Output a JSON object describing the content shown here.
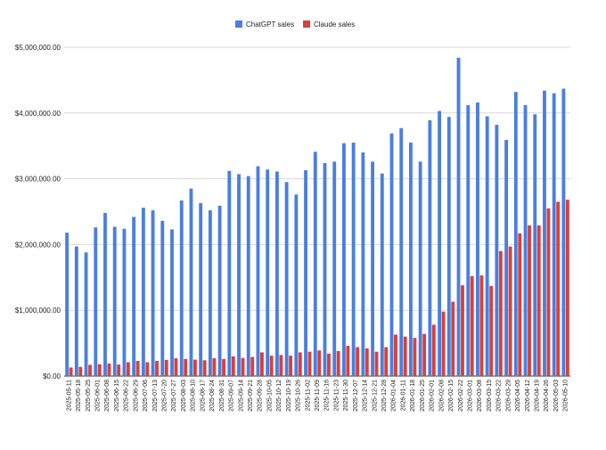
{
  "chart_data": {
    "type": "bar",
    "title": "",
    "xlabel": "",
    "ylabel": "",
    "legend_position": "top-center",
    "grid": true,
    "ylim": [
      0,
      5000000
    ],
    "y_ticks": [
      0,
      1000000,
      2000000,
      3000000,
      4000000,
      5000000
    ],
    "y_tick_labels": [
      "$0.00",
      "$1,000,000.00",
      "$2,000,000.00",
      "$3,000,000.00",
      "$4,000,000.00",
      "$5,000,000.00"
    ],
    "categories": [
      "2025-05-11",
      "2025-05-18",
      "2025-05-25",
      "2025-06-01",
      "2025-06-08",
      "2025-06-15",
      "2025-06-22",
      "2025-06-29",
      "2025-07-06",
      "2025-07-13",
      "2025-07-20",
      "2025-07-27",
      "2025-08-03",
      "2025-08-10",
      "2025-08-17",
      "2025-08-24",
      "2025-08-31",
      "2025-09-07",
      "2025-09-14",
      "2025-09-21",
      "2025-09-28",
      "2025-10-05",
      "2025-10-12",
      "2025-10-19",
      "2025-10-26",
      "2025-11-02",
      "2025-11-09",
      "2025-11-16",
      "2025-11-23",
      "2025-11-30",
      "2025-12-07",
      "2025-12-14",
      "2025-12-21",
      "2025-12-28",
      "2026-01-04",
      "2026-01-11",
      "2026-01-18",
      "2026-01-25",
      "2026-02-01",
      "2026-02-08",
      "2026-02-15",
      "2026-02-22",
      "2026-03-01",
      "2026-03-08",
      "2026-03-15",
      "2026-03-22",
      "2026-03-29",
      "2026-04-05",
      "2026-04-12",
      "2026-04-19",
      "2026-04-26",
      "2026-05-03",
      "2026-05-10"
    ],
    "series": [
      {
        "name": "ChatGPT sales",
        "color": "#4a7fe0",
        "values": [
          2180000,
          1970000,
          1880000,
          2260000,
          2480000,
          2270000,
          2240000,
          2420000,
          2560000,
          2520000,
          2360000,
          2230000,
          2670000,
          2850000,
          2630000,
          2520000,
          2590000,
          3120000,
          3070000,
          3040000,
          3190000,
          3140000,
          3110000,
          2950000,
          2760000,
          3130000,
          3410000,
          3240000,
          3260000,
          3540000,
          3550000,
          3400000,
          3260000,
          3080000,
          3690000,
          3770000,
          3550000,
          3260000,
          3890000,
          4030000,
          3940000,
          4840000,
          4120000,
          4160000,
          3950000,
          3820000,
          3590000,
          4320000,
          4120000,
          3980000,
          4340000,
          4300000,
          4370000
        ]
      },
      {
        "name": "Claude sales",
        "color": "#d9403a",
        "values": [
          130000,
          140000,
          170000,
          180000,
          190000,
          175000,
          210000,
          230000,
          210000,
          230000,
          245000,
          270000,
          260000,
          250000,
          240000,
          270000,
          260000,
          300000,
          275000,
          290000,
          360000,
          310000,
          320000,
          310000,
          360000,
          370000,
          390000,
          340000,
          380000,
          460000,
          440000,
          420000,
          370000,
          440000,
          630000,
          600000,
          580000,
          640000,
          780000,
          980000,
          1130000,
          1380000,
          1520000,
          1530000,
          1370000,
          1900000,
          1970000,
          2170000,
          2290000,
          2290000,
          2550000,
          2650000,
          2680000
        ]
      }
    ]
  }
}
